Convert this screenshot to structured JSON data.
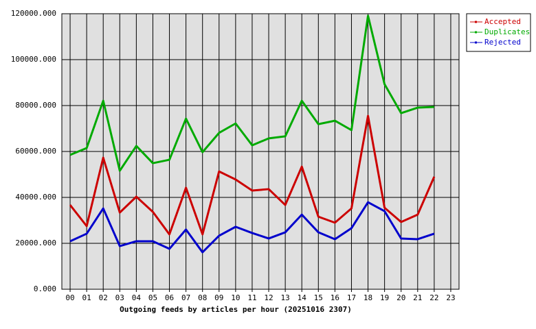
{
  "chart_data": {
    "type": "line",
    "xlabel": "Outgoing feeds by articles per hour (20251016 2307)",
    "categories": [
      "00",
      "01",
      "02",
      "03",
      "04",
      "05",
      "06",
      "07",
      "08",
      "09",
      "10",
      "11",
      "12",
      "13",
      "14",
      "15",
      "16",
      "17",
      "18",
      "19",
      "20",
      "21",
      "22",
      "23"
    ],
    "series": [
      {
        "name": "Accepted",
        "color": "#cc0000",
        "values": [
          36700,
          27500,
          57300,
          33400,
          40300,
          33700,
          23900,
          44200,
          23900,
          51300,
          47800,
          43000,
          43600,
          36700,
          53400,
          31600,
          29000,
          35200,
          75500,
          35500,
          29300,
          32500,
          49000,
          null
        ]
      },
      {
        "name": "Duplicates",
        "color": "#00aa00",
        "values": [
          58500,
          61500,
          82100,
          51600,
          62400,
          54900,
          56400,
          74300,
          59700,
          68100,
          72200,
          62700,
          65700,
          66600,
          82100,
          71900,
          73400,
          69300,
          119100,
          89300,
          76700,
          79100,
          79400,
          null
        ]
      },
      {
        "name": "Rejected",
        "color": "#0000cc",
        "values": [
          20900,
          24200,
          35200,
          18800,
          20900,
          20900,
          17600,
          26000,
          16100,
          23300,
          27200,
          24500,
          22100,
          24800,
          32500,
          24800,
          21800,
          26600,
          37900,
          34000,
          22100,
          21800,
          24200,
          null
        ]
      }
    ],
    "ylim": [
      0,
      120000
    ],
    "yticks": [
      {
        "value": 0,
        "label": "0.000"
      },
      {
        "value": 20000,
        "label": "20000.000"
      },
      {
        "value": 40000,
        "label": "40000.000"
      },
      {
        "value": 60000,
        "label": "60000.000"
      },
      {
        "value": 80000,
        "label": "80000.000"
      },
      {
        "value": 100000,
        "label": "100000.000"
      },
      {
        "value": 120000,
        "label": "120000.000"
      }
    ],
    "grid": true,
    "legend": "right"
  }
}
